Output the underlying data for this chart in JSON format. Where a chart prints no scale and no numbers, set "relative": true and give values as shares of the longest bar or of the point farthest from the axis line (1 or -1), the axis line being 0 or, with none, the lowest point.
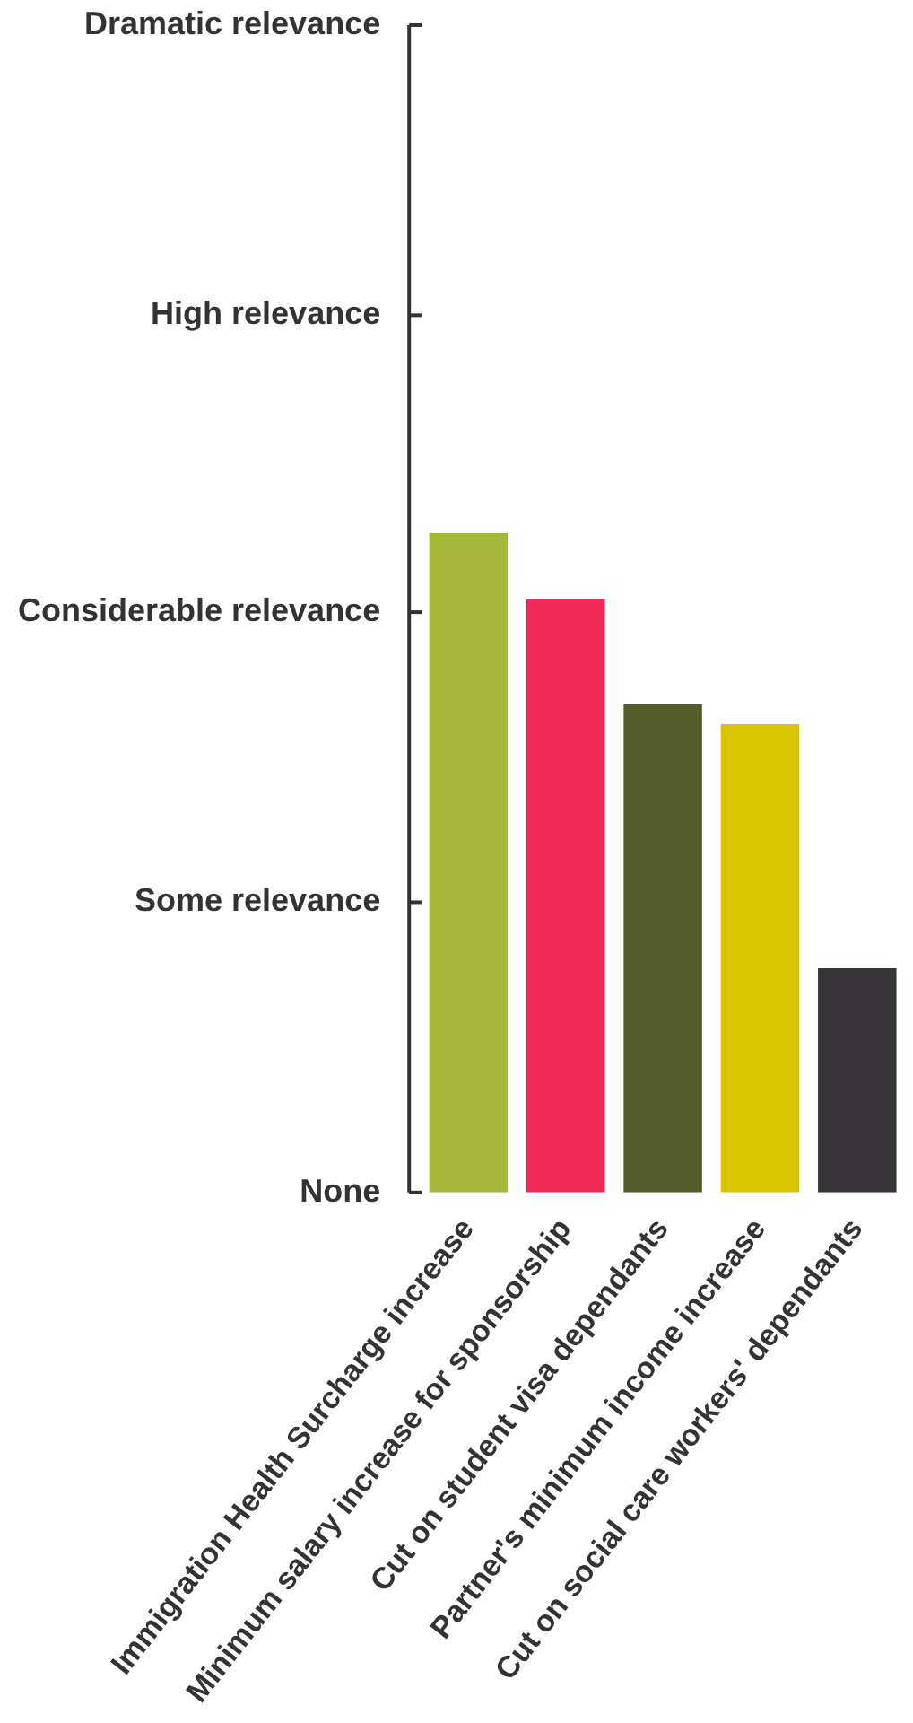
{
  "chart_data": {
    "type": "bar",
    "relative": true,
    "categories": [
      "Immigration Health Surcharge increase",
      "Minimum salary increase for sponsorship",
      "Cut on student visa dependants",
      "Partner's minimum income increase",
      "Cut on social care workers' dependants"
    ],
    "values": [
      1,
      0.9,
      0.74,
      0.71,
      0.34
    ],
    "colors": [
      "#a5b83a",
      "#f0295a",
      "#555e2a",
      "#d9c400",
      "#3a3538"
    ],
    "ref_lines": [
      {
        "axis": "y",
        "value": 0,
        "label": "None"
      },
      {
        "axis": "y",
        "value": 0.44,
        "label": "Some relevance"
      },
      {
        "axis": "y",
        "value": 0.88,
        "label": "Considerable relevance"
      },
      {
        "axis": "y",
        "value": 1.33,
        "label": "High relevance"
      },
      {
        "axis": "y",
        "value": 1.77,
        "label": "Dramatic relevance"
      }
    ],
    "grid": false,
    "legend": false
  }
}
